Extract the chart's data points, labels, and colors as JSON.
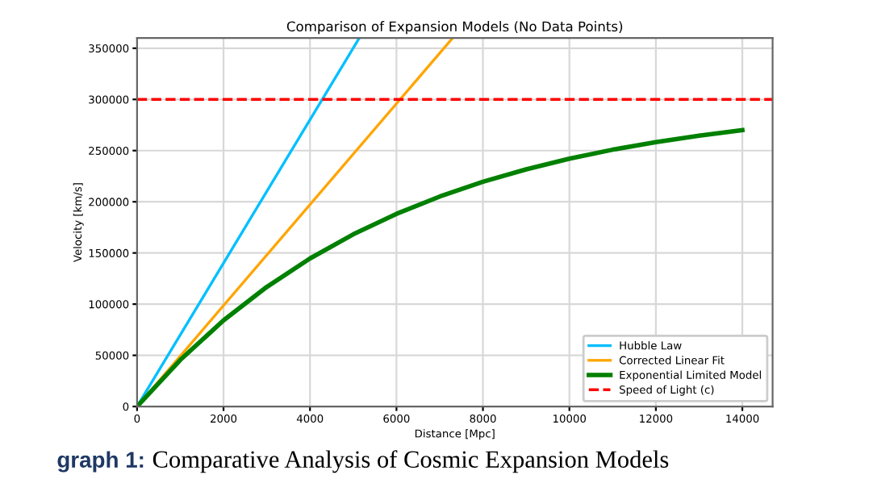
{
  "chart_data": {
    "type": "line",
    "title": "Comparison of Expansion Models (No Data Points)",
    "xlabel": "Distance [Mpc]",
    "ylabel": "Velocity [km/s]",
    "xlim": [
      0,
      14700
    ],
    "xticks": [
      0,
      2000,
      4000,
      6000,
      8000,
      10000,
      12000,
      14000
    ],
    "ylim": [
      0,
      360000
    ],
    "yticks": [
      0,
      50000,
      100000,
      150000,
      200000,
      250000,
      300000,
      350000
    ],
    "grid": true,
    "legend": "bottom right",
    "line_style": "solid",
    "marker": "none",
    "series": [
      {
        "name": "Hubble Law",
        "color": "#00bfff",
        "x": [
          0,
          5140
        ],
        "values": [
          0,
          360000
        ]
      },
      {
        "name": "Corrected Linear Fit",
        "color": "#ffa500",
        "x": [
          0,
          7300
        ],
        "values": [
          0,
          360000
        ]
      },
      {
        "name": "Exponential Limited Model",
        "color": "#008000",
        "x": [
          0,
          1000,
          2000,
          3000,
          4000,
          5000,
          6000,
          7000,
          8000,
          9000,
          10000,
          11000,
          12000,
          13000,
          14000
        ],
        "values": [
          0,
          45500,
          84100,
          116800,
          144600,
          168200,
          188200,
          205100,
          219500,
          231700,
          242100,
          250900,
          258300,
          264600,
          270000
        ]
      }
    ],
    "ref_lines": [
      {
        "axis": "y",
        "value": 300000,
        "label": "Speed of Light (c)",
        "color": "#ff0000",
        "line_style": "dashed"
      }
    ],
    "annotations": [
      "graph 1:",
      "Comparative Analysis of Cosmic Expansion Models"
    ]
  }
}
